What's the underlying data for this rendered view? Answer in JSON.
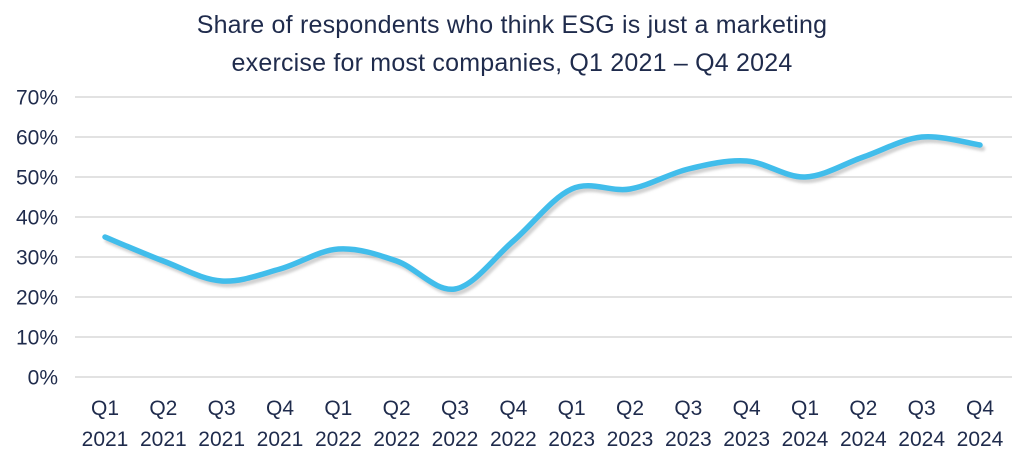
{
  "chart_data": {
    "type": "line",
    "title": "Share of respondents who think ESG is just a marketing exercise for most companies, Q1 2021 – Q4 2024",
    "title_lines": [
      "Share of respondents who think ESG is just a marketing",
      "exercise for most companies, Q1 2021 – Q4 2024"
    ],
    "categories": [
      "Q1 2021",
      "Q2 2021",
      "Q3 2021",
      "Q4 2021",
      "Q1 2022",
      "Q2 2022",
      "Q3 2022",
      "Q4 2022",
      "Q1 2023",
      "Q2 2023",
      "Q3 2023",
      "Q4 2023",
      "Q1 2024",
      "Q2 2024",
      "Q3 2024",
      "Q4 2024"
    ],
    "series": [
      {
        "name": "Share of respondents who think ESG is just a marketing exercise",
        "values": [
          35,
          29,
          24,
          27,
          32,
          29,
          22,
          34,
          47,
          47,
          52,
          54,
          50,
          55,
          60,
          58
        ]
      }
    ],
    "xlabel": "",
    "ylabel": "",
    "ylim": [
      0,
      70
    ],
    "y_tick_step": 10,
    "y_ticks": [
      "0%",
      "10%",
      "20%",
      "30%",
      "40%",
      "50%",
      "60%",
      "70%"
    ],
    "grid": true,
    "legend_position": "none",
    "line_smoothing": "spline",
    "colors": {
      "line": "#41BDEB",
      "line_shadow": "#9a9a9a",
      "gridline": "#D9D9D9",
      "text": "#1F2B4C",
      "background": "#ffffff"
    }
  }
}
